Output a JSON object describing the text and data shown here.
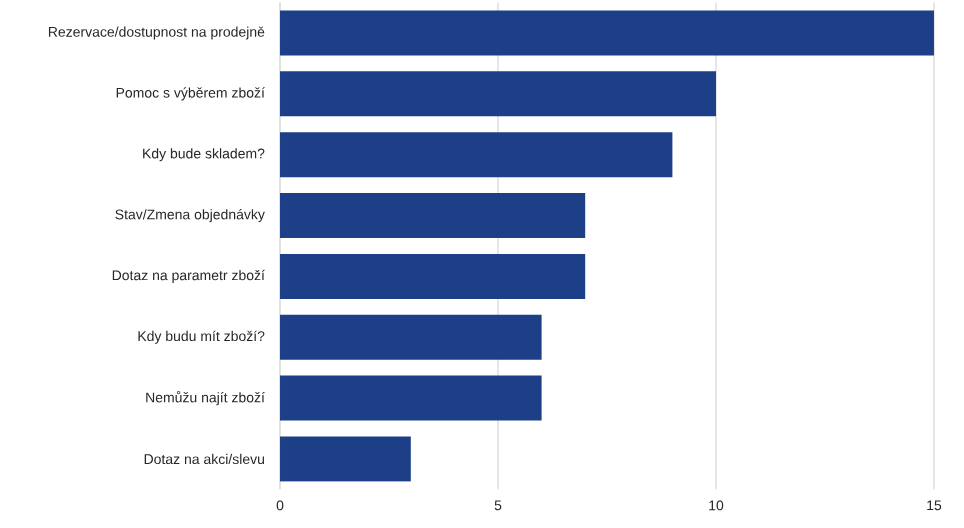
{
  "chart_data": {
    "type": "bar",
    "orientation": "horizontal",
    "categories": [
      "Rezervace/dostupnost na prodejně",
      "Pomoc s výběrem zboží",
      "Kdy bude skladem?",
      "Stav/Zmena objednávky",
      "Dotaz na parametr zboží",
      "Kdy budu mít zboží?",
      "Nemůžu najít zboží",
      "Dotaz na akci/slevu"
    ],
    "values": [
      15,
      10,
      9,
      7,
      7,
      6,
      6,
      3
    ],
    "color": "#1c3f87",
    "xlim": [
      0,
      15
    ],
    "xticks": [
      0,
      5,
      10,
      15
    ],
    "grid": "x"
  }
}
